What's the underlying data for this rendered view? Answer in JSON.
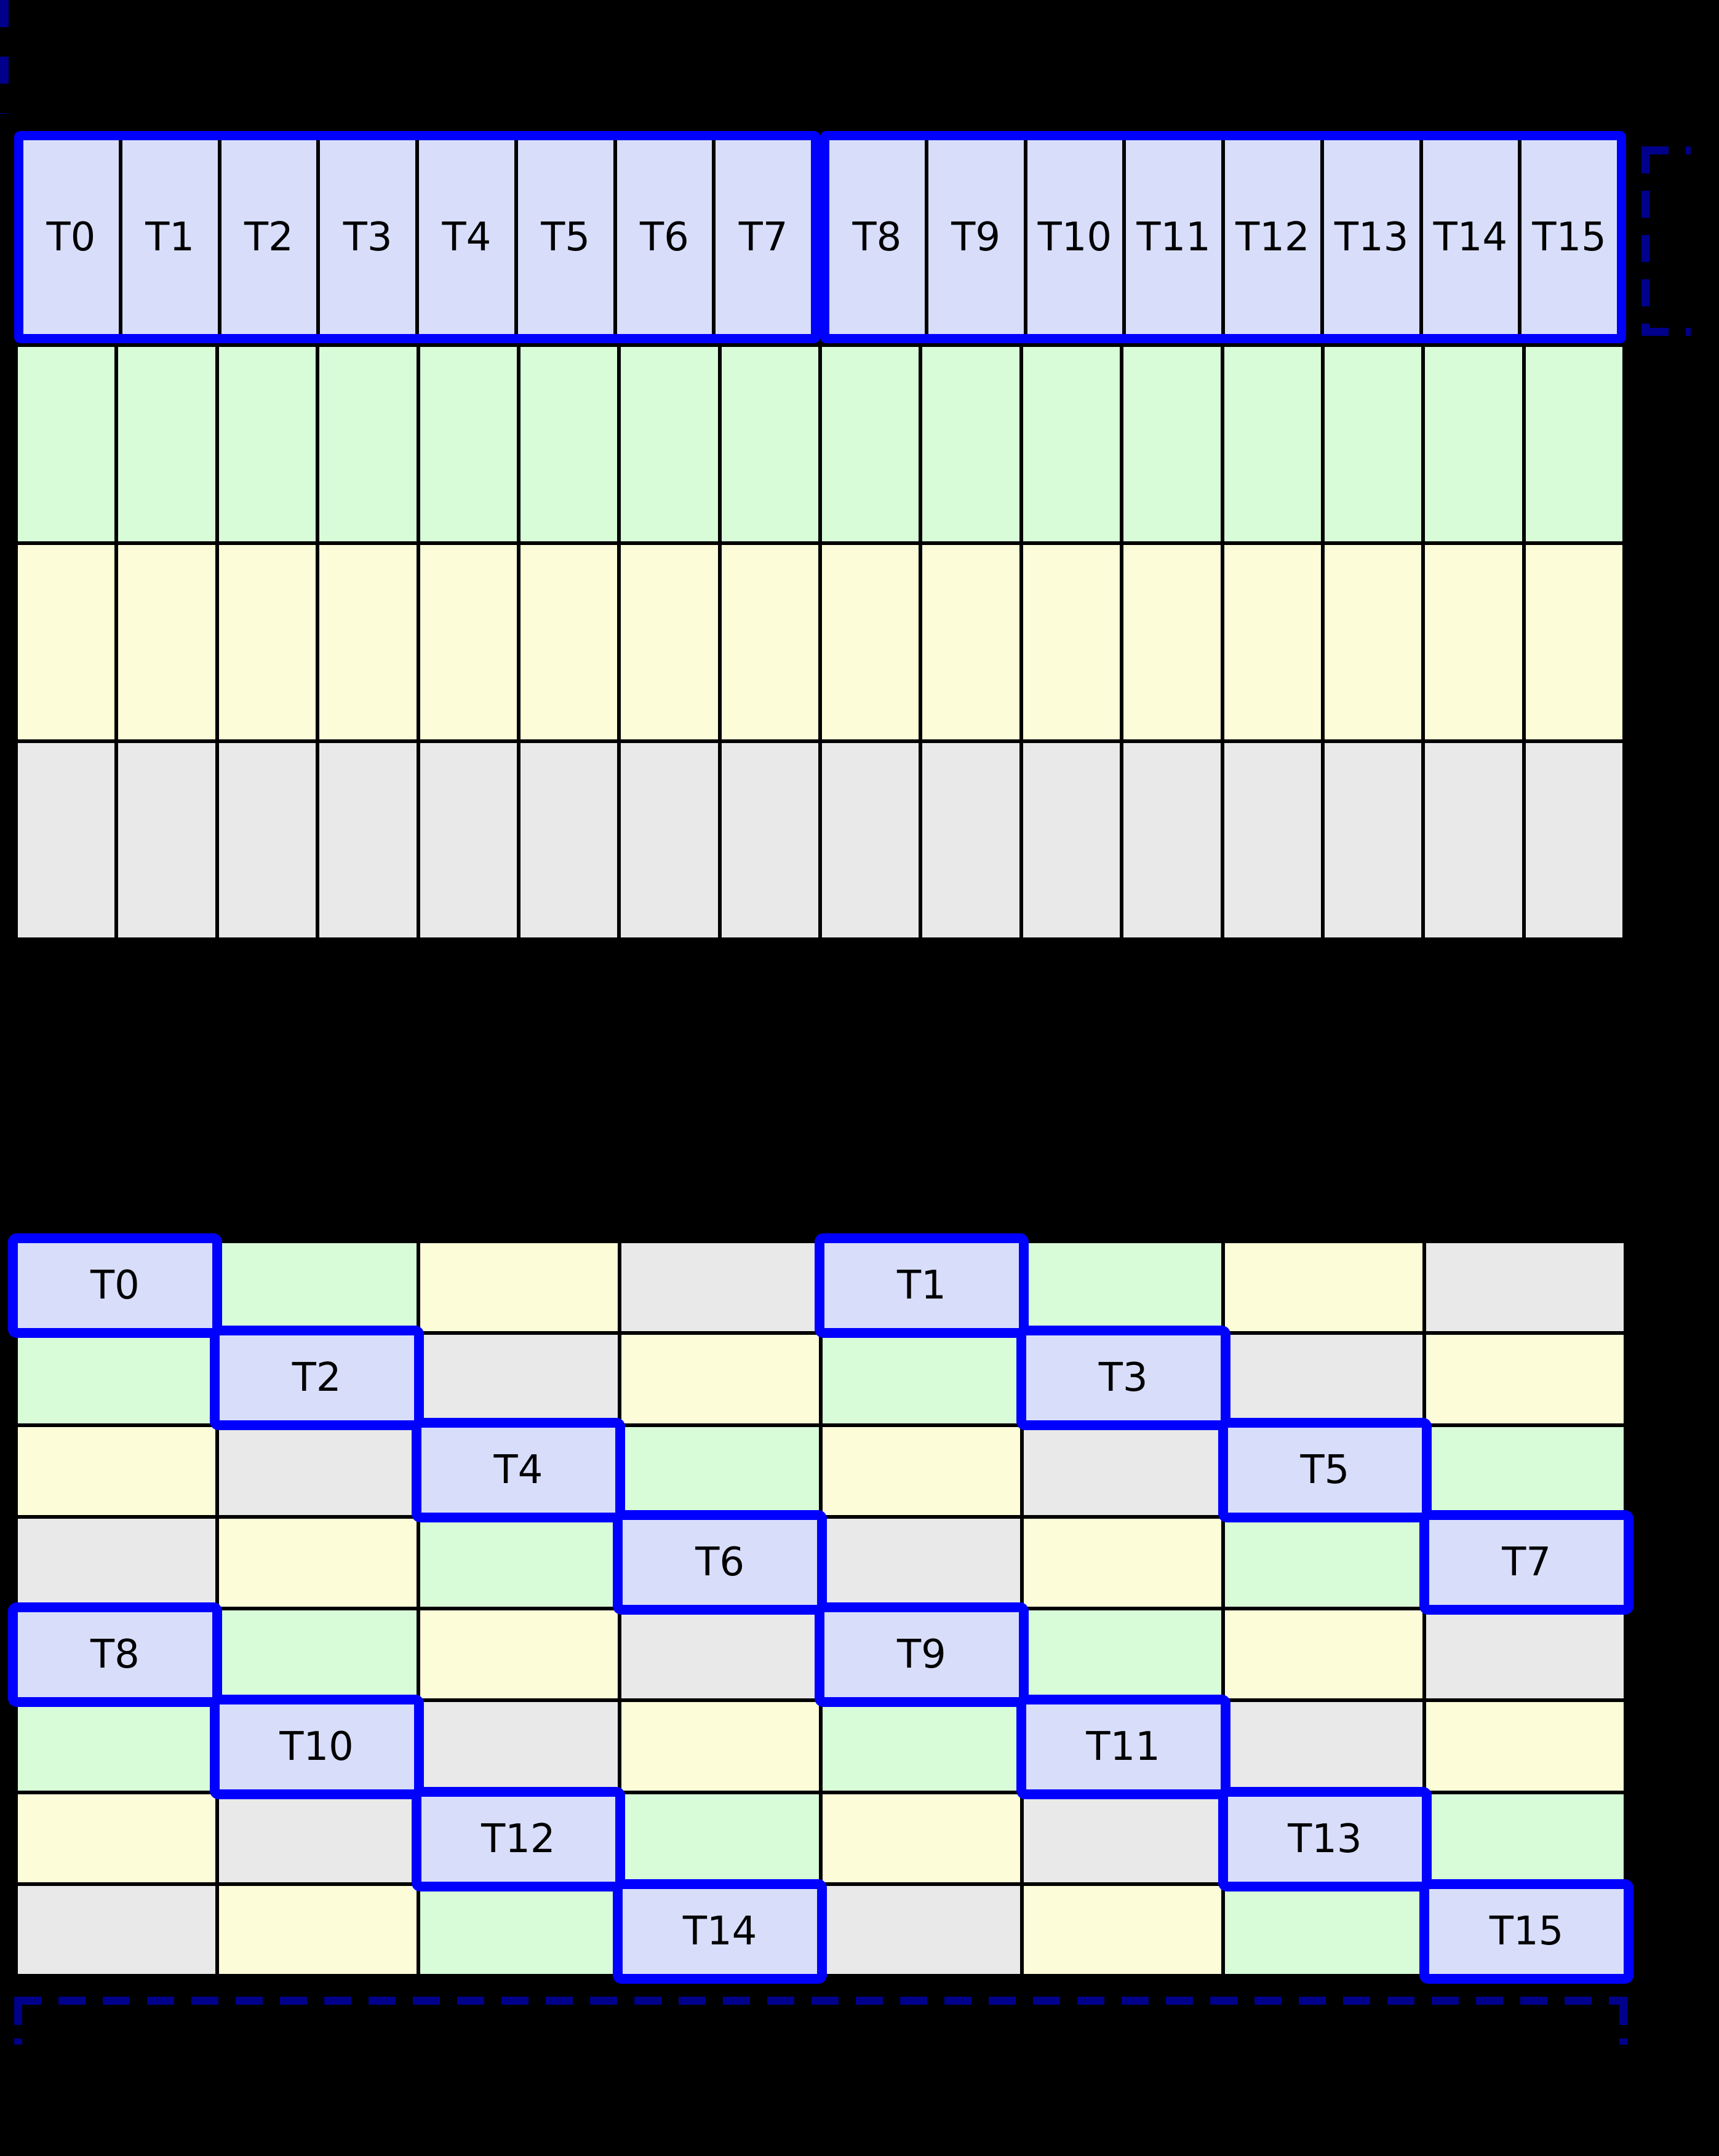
{
  "palette": {
    "background": "#000000",
    "thread_cell": "#d8defa",
    "green_cell": "#d8fbd8",
    "yellow_cell": "#fcfcd8",
    "gray_cell": "#e9e9e9",
    "highlight_blue": "#0000ff",
    "bracket_navy": "#00008b",
    "grid_line": "#000000"
  },
  "top_grid": {
    "cols": 16,
    "warp_row": {
      "groups": [
        {
          "labels": [
            "T0",
            "T1",
            "T2",
            "T3",
            "T4",
            "T5",
            "T6",
            "T7"
          ]
        },
        {
          "labels": [
            "T8",
            "T9",
            "T10",
            "T11",
            "T12",
            "T13",
            "T14",
            "T15"
          ]
        }
      ]
    },
    "data_rows": [
      "green",
      "yellow",
      "gray"
    ]
  },
  "bottom_grid": {
    "rows": 8,
    "cols": 8,
    "pattern": "color_index = (row mod 4) xor (col mod 4)",
    "cells": [
      [
        "thread",
        "green",
        "yellow",
        "gray",
        "thread",
        "green",
        "yellow",
        "gray"
      ],
      [
        "green",
        "thread",
        "gray",
        "yellow",
        "green",
        "thread",
        "gray",
        "yellow"
      ],
      [
        "yellow",
        "gray",
        "thread",
        "green",
        "yellow",
        "gray",
        "thread",
        "green"
      ],
      [
        "gray",
        "yellow",
        "green",
        "thread",
        "gray",
        "yellow",
        "green",
        "thread"
      ],
      [
        "thread",
        "green",
        "yellow",
        "gray",
        "thread",
        "green",
        "yellow",
        "gray"
      ],
      [
        "green",
        "thread",
        "gray",
        "yellow",
        "green",
        "thread",
        "gray",
        "yellow"
      ],
      [
        "yellow",
        "gray",
        "thread",
        "green",
        "yellow",
        "gray",
        "thread",
        "green"
      ],
      [
        "gray",
        "yellow",
        "green",
        "thread",
        "gray",
        "yellow",
        "green",
        "thread"
      ]
    ],
    "threads": [
      {
        "label": "T0",
        "row": 0,
        "col": 0
      },
      {
        "label": "T1",
        "row": 0,
        "col": 4
      },
      {
        "label": "T2",
        "row": 1,
        "col": 1
      },
      {
        "label": "T3",
        "row": 1,
        "col": 5
      },
      {
        "label": "T4",
        "row": 2,
        "col": 2
      },
      {
        "label": "T5",
        "row": 2,
        "col": 6
      },
      {
        "label": "T6",
        "row": 3,
        "col": 3
      },
      {
        "label": "T7",
        "row": 3,
        "col": 7
      },
      {
        "label": "T8",
        "row": 4,
        "col": 0
      },
      {
        "label": "T9",
        "row": 4,
        "col": 4
      },
      {
        "label": "T10",
        "row": 5,
        "col": 1
      },
      {
        "label": "T11",
        "row": 5,
        "col": 5
      },
      {
        "label": "T12",
        "row": 6,
        "col": 2
      },
      {
        "label": "T13",
        "row": 6,
        "col": 6
      },
      {
        "label": "T14",
        "row": 7,
        "col": 3
      },
      {
        "label": "T15",
        "row": 7,
        "col": 7
      }
    ]
  }
}
